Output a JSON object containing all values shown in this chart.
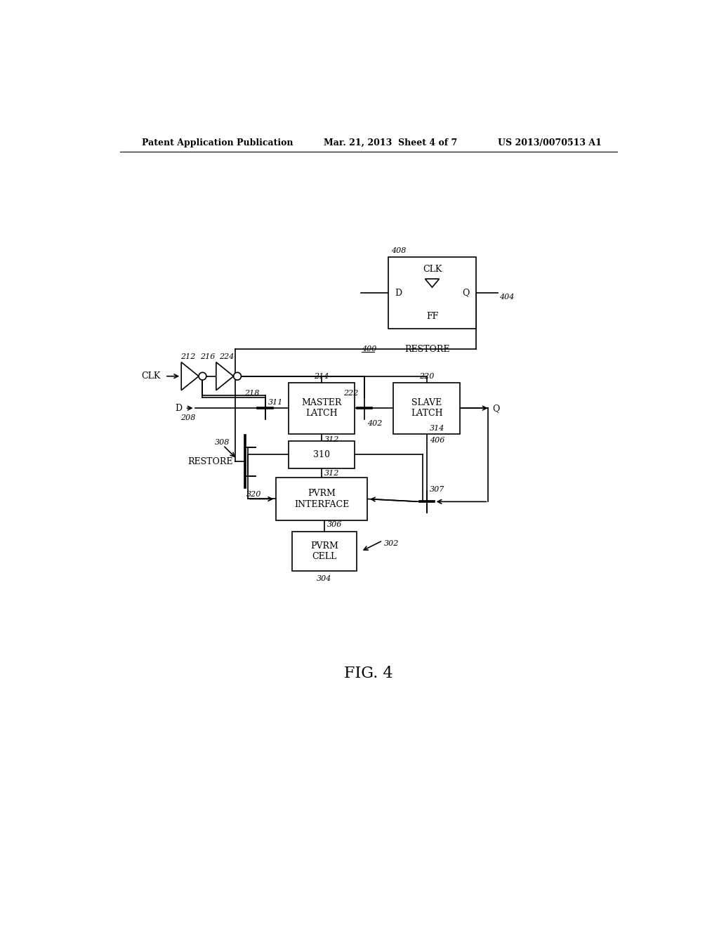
{
  "background_color": "#ffffff",
  "header_left": "Patent Application Publication",
  "header_mid": "Mar. 21, 2013  Sheet 4 of 7",
  "header_right": "US 2013/0070513 A1",
  "fig_label": "FIG. 4",
  "lw": 1.2,
  "fs_label": 9,
  "fs_ref": 8,
  "fs_header": 9,
  "fs_fig": 16
}
